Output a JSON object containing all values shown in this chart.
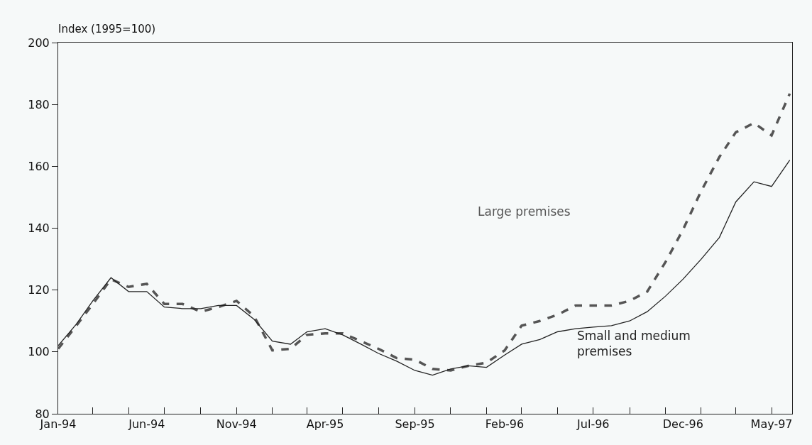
{
  "chart_data": {
    "type": "line",
    "ylabel": "Index (1995=100)",
    "x": [
      "1994-01",
      "1994-02",
      "1994-03",
      "1994-04",
      "1994-05",
      "1994-06",
      "1994-07",
      "1994-08",
      "1994-09",
      "1994-10",
      "1994-11",
      "1994-12",
      "1995-01",
      "1995-02",
      "1995-03",
      "1995-04",
      "1995-05",
      "1995-06",
      "1995-07",
      "1995-08",
      "1995-09",
      "1995-10",
      "1995-11",
      "1995-12",
      "1996-01",
      "1996-02",
      "1996-03",
      "1996-04",
      "1996-05",
      "1996-06",
      "1996-07",
      "1996-08",
      "1996-09",
      "1996-10",
      "1996-11",
      "1996-12",
      "1997-01",
      "1997-02",
      "1997-03",
      "1997-04",
      "1997-05",
      "1997-06"
    ],
    "series": [
      {
        "name": "Large premises",
        "color": "#555555",
        "line_style": "dashed",
        "values": [
          101,
          108.5,
          115.5,
          123.5,
          121,
          122,
          115.5,
          115.5,
          113,
          114.5,
          116.5,
          111.5,
          100.5,
          101,
          105.5,
          106,
          106,
          103.5,
          101,
          98,
          97.5,
          94.5,
          94,
          95.5,
          96.5,
          100.5,
          108.5,
          110,
          112,
          115,
          115,
          115,
          116.5,
          119.5,
          129,
          139.5,
          152,
          163,
          171,
          174,
          170,
          183.5
        ]
      },
      {
        "name": "Small and medium\npremises",
        "color": "#222222",
        "line_style": "solid",
        "values": [
          102,
          109,
          116.5,
          124,
          119.5,
          119.5,
          114.5,
          114,
          114,
          115,
          115,
          110.5,
          103.5,
          102.5,
          106.5,
          107.5,
          105.5,
          102.5,
          99.5,
          97,
          94,
          92.5,
          94.5,
          95.5,
          95,
          99,
          102.5,
          104,
          106.5,
          107.5,
          108,
          108.5,
          110,
          113,
          118,
          123.5,
          130,
          137,
          148.5,
          155,
          153.5,
          162
        ]
      }
    ],
    "xlim": [
      "1994-01-01",
      "1997-06-05"
    ],
    "xticks": [
      {
        "value": "1994-01-01",
        "label": "Jan-94"
      },
      {
        "value": "1994-06-01",
        "label": "Jun-94"
      },
      {
        "value": "1994-11-01",
        "label": "Nov-94"
      },
      {
        "value": "1995-04-01",
        "label": "Apr-95"
      },
      {
        "value": "1995-09-01",
        "label": "Sep-95"
      },
      {
        "value": "1996-02-01",
        "label": "Feb-96"
      },
      {
        "value": "1996-07-01",
        "label": "Jul-96"
      },
      {
        "value": "1996-12-01",
        "label": "Dec-96"
      },
      {
        "value": "1997-05-01",
        "label": "May-97"
      },
      {
        "value": "1994-01-01",
        "label": null
      },
      {
        "value": "1994-03-01",
        "label": null
      },
      {
        "value": "1994-05-01",
        "label": null
      },
      {
        "value": "1994-07-01",
        "label": null
      },
      {
        "value": "1994-09-01",
        "label": null
      },
      {
        "value": "1994-11-01",
        "label": null
      },
      {
        "value": "1995-01-01",
        "label": null
      },
      {
        "value": "1995-03-01",
        "label": null
      },
      {
        "value": "1995-05-01",
        "label": null
      },
      {
        "value": "1995-07-01",
        "label": null
      },
      {
        "value": "1995-09-01",
        "label": null
      },
      {
        "value": "1995-11-01",
        "label": null
      },
      {
        "value": "1996-01-01",
        "label": null
      },
      {
        "value": "1996-03-01",
        "label": null
      },
      {
        "value": "1996-05-01",
        "label": null
      },
      {
        "value": "1996-07-01",
        "label": null
      },
      {
        "value": "1996-09-01",
        "label": null
      },
      {
        "value": "1996-11-01",
        "label": null
      },
      {
        "value": "1997-01-01",
        "label": null
      },
      {
        "value": "1997-03-01",
        "label": null
      },
      {
        "value": "1997-05-01",
        "label": null
      }
    ],
    "ylim": [
      80,
      200
    ],
    "yticks": [
      80,
      100,
      120,
      140,
      160,
      180,
      200
    ],
    "grid": false,
    "legend": false,
    "marker": "none"
  }
}
